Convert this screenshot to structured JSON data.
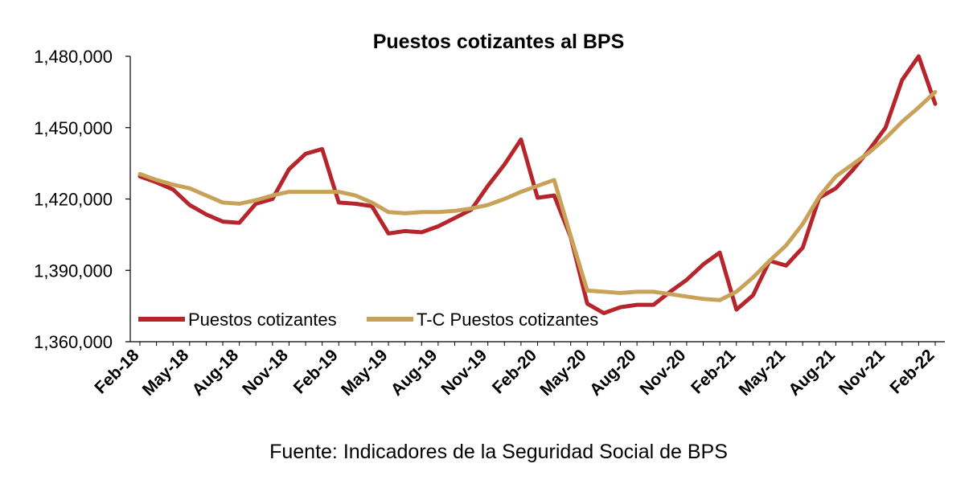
{
  "chart_data": {
    "type": "line",
    "title": "Puestos cotizantes al BPS",
    "xlabel": "",
    "ylabel": "",
    "ylim": [
      1360000,
      1480000
    ],
    "yticks": [
      1360000,
      1390000,
      1420000,
      1450000,
      1480000
    ],
    "ytick_labels": [
      "1,360,000",
      "1,390,000",
      "1,420,000",
      "1,450,000",
      "1,480,000"
    ],
    "x": [
      "Feb-18",
      "Mar-18",
      "Apr-18",
      "May-18",
      "Jun-18",
      "Jul-18",
      "Aug-18",
      "Sep-18",
      "Oct-18",
      "Nov-18",
      "Dec-18",
      "Jan-19",
      "Feb-19",
      "Mar-19",
      "Apr-19",
      "May-19",
      "Jun-19",
      "Jul-19",
      "Aug-19",
      "Sep-19",
      "Oct-19",
      "Nov-19",
      "Dec-19",
      "Jan-20",
      "Feb-20",
      "Mar-20",
      "Apr-20",
      "May-20",
      "Jun-20",
      "Jul-20",
      "Aug-20",
      "Sep-20",
      "Oct-20",
      "Nov-20",
      "Dec-20",
      "Jan-21",
      "Feb-21",
      "Mar-21",
      "Apr-21",
      "May-21",
      "Jun-21",
      "Jul-21",
      "Aug-21",
      "Sep-21",
      "Oct-21",
      "Nov-21",
      "Dec-21",
      "Jan-22",
      "Feb-22"
    ],
    "xtick_labels": [
      "Feb-18",
      "May-18",
      "Aug-18",
      "Nov-18",
      "Feb-19",
      "May-19",
      "Aug-19",
      "Nov-19",
      "Feb-20",
      "May-20",
      "Aug-20",
      "Nov-20",
      "Feb-21",
      "May-21",
      "Aug-21",
      "Nov-21",
      "Feb-22"
    ],
    "series": [
      {
        "name": "Puestos cotizantes",
        "color": "#b5252b",
        "values": [
          1429500,
          1427000,
          1424000,
          1417500,
          1413500,
          1410500,
          1410000,
          1418000,
          1420000,
          1432500,
          1439000,
          1441000,
          1418500,
          1418000,
          1417000,
          1405500,
          1406500,
          1406000,
          1408500,
          1412000,
          1415500,
          1425500,
          1434500,
          1445000,
          1420500,
          1421500,
          1404000,
          1376000,
          1372000,
          1374500,
          1375500,
          1375500,
          1381000,
          1386000,
          1392500,
          1397500,
          1373500,
          1379500,
          1394000,
          1392000,
          1399500,
          1420500,
          1424500,
          1432000,
          1440500,
          1450000,
          1470000,
          1480000,
          1460000
        ]
      },
      {
        "name": "T-C Puestos cotizantes",
        "color": "#c9a25a",
        "values": [
          1430500,
          1428000,
          1426000,
          1424500,
          1421500,
          1418500,
          1418000,
          1419500,
          1421500,
          1423000,
          1423000,
          1423000,
          1423000,
          1421500,
          1418500,
          1414500,
          1414000,
          1414500,
          1414500,
          1415000,
          1416000,
          1417500,
          1420000,
          1423000,
          1425500,
          1428000,
          1404500,
          1381500,
          1381000,
          1380500,
          1381000,
          1381000,
          1380000,
          1379000,
          1378000,
          1377500,
          1381000,
          1387000,
          1394000,
          1400500,
          1409500,
          1421000,
          1429500,
          1434500,
          1439500,
          1445500,
          1452500,
          1458500,
          1465000
        ]
      }
    ],
    "legend": {
      "placement": "bottom-left",
      "entries": [
        "Puestos cotizantes",
        "T-C Puestos cotizantes"
      ]
    },
    "grid": false,
    "source": "Fuente: Indicadores de la Seguridad Social de BPS"
  }
}
